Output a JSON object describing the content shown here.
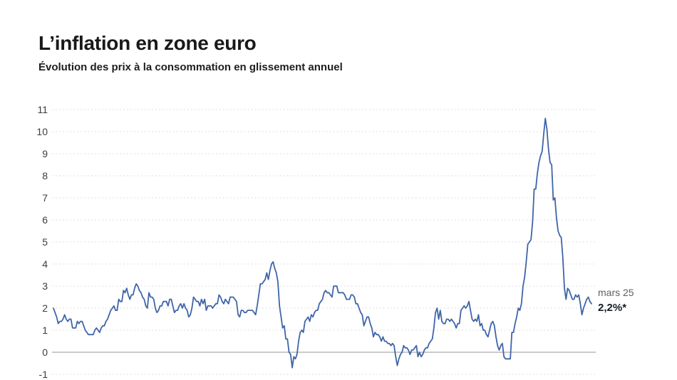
{
  "header": {
    "title": "L’inflation en zone euro",
    "subtitle": "Évolution des prix à la consommation en glissement annuel"
  },
  "annotation": {
    "date_label": "mars 25",
    "value_label": "2,2%*"
  },
  "colors": {
    "background": "#ffffff",
    "line": "#3f65a9",
    "grid": "#d4d4d4",
    "zero_line": "#ababab",
    "title": "#191919",
    "tick": "#3d3d3d",
    "annotation_date": "#606060",
    "annotation_value": "#121c26"
  },
  "chart_data": {
    "type": "line",
    "title": "L’inflation en zone euro",
    "subtitle": "Évolution des prix à la consommation en glissement annuel",
    "unit": "%",
    "frequency": "monthly",
    "x_start": "1997-01",
    "x_end": "2025-03",
    "ylim": [
      -1,
      11
    ],
    "y_ticks": [
      -1,
      0,
      1,
      2,
      3,
      4,
      5,
      6,
      7,
      8,
      9,
      10,
      11
    ],
    "grid": "dotted-horizontal, solid zero line, no x-axis labels visible",
    "legend": "none",
    "last_point": {
      "label": "mars 25",
      "value": 2.2
    },
    "values_by_year": {
      "1997": [
        2.0,
        1.8,
        1.6,
        1.3,
        1.4,
        1.4,
        1.5,
        1.7,
        1.5,
        1.4,
        1.5,
        1.5
      ],
      "1998": [
        1.1,
        1.1,
        1.1,
        1.4,
        1.3,
        1.4,
        1.4,
        1.2,
        1.0,
        0.9,
        0.8,
        0.8
      ],
      "1999": [
        0.8,
        0.8,
        1.0,
        1.1,
        1.0,
        0.9,
        1.1,
        1.2,
        1.2,
        1.4,
        1.5,
        1.7
      ],
      "2000": [
        1.9,
        2.0,
        2.1,
        1.9,
        1.9,
        2.4,
        2.3,
        2.3,
        2.8,
        2.7,
        2.9,
        2.6
      ],
      "2001": [
        2.4,
        2.6,
        2.6,
        2.9,
        3.1,
        3.0,
        2.8,
        2.7,
        2.5,
        2.4,
        2.1,
        2.0
      ],
      "2002": [
        2.7,
        2.5,
        2.5,
        2.4,
        2.0,
        1.8,
        1.9,
        2.1,
        2.1,
        2.3,
        2.3,
        2.3
      ],
      "2003": [
        2.1,
        2.4,
        2.4,
        2.1,
        1.8,
        1.9,
        1.9,
        2.1,
        2.2,
        2.0,
        2.2,
        2.0
      ],
      "2004": [
        1.9,
        1.6,
        1.7,
        2.0,
        2.5,
        2.4,
        2.3,
        2.3,
        2.1,
        2.4,
        2.2,
        2.4
      ],
      "2005": [
        1.9,
        2.1,
        2.1,
        2.1,
        2.0,
        2.1,
        2.2,
        2.2,
        2.6,
        2.5,
        2.3,
        2.2
      ],
      "2006": [
        2.4,
        2.3,
        2.2,
        2.5,
        2.5,
        2.5,
        2.4,
        2.3,
        1.7,
        1.6,
        1.9,
        1.9
      ],
      "2007": [
        1.8,
        1.8,
        1.9,
        1.9,
        1.9,
        1.9,
        1.8,
        1.7,
        2.1,
        2.6,
        3.1,
        3.1
      ],
      "2008": [
        3.2,
        3.3,
        3.6,
        3.3,
        3.7,
        4.0,
        4.1,
        3.8,
        3.6,
        3.2,
        2.1,
        1.6
      ],
      "2009": [
        1.1,
        1.2,
        0.6,
        0.6,
        0.0,
        -0.1,
        -0.7,
        -0.2,
        -0.3,
        -0.1,
        0.5,
        0.9
      ],
      "2010": [
        1.0,
        0.9,
        1.4,
        1.5,
        1.6,
        1.4,
        1.7,
        1.6,
        1.8,
        1.9,
        1.9,
        2.2
      ],
      "2011": [
        2.3,
        2.4,
        2.7,
        2.8,
        2.7,
        2.7,
        2.6,
        2.5,
        3.0,
        3.0,
        3.0,
        2.7
      ],
      "2012": [
        2.7,
        2.7,
        2.7,
        2.6,
        2.4,
        2.4,
        2.4,
        2.6,
        2.6,
        2.5,
        2.2,
        2.2
      ],
      "2013": [
        2.0,
        1.8,
        1.7,
        1.2,
        1.4,
        1.6,
        1.6,
        1.3,
        1.1,
        0.7,
        0.9,
        0.8
      ],
      "2014": [
        0.8,
        0.7,
        0.5,
        0.7,
        0.5,
        0.5,
        0.4,
        0.4,
        0.3,
        0.4,
        0.3,
        -0.2
      ],
      "2015": [
        -0.6,
        -0.3,
        -0.1,
        0.0,
        0.3,
        0.2,
        0.2,
        0.1,
        -0.1,
        0.1,
        0.1,
        0.2
      ],
      "2016": [
        0.3,
        -0.2,
        0.0,
        -0.2,
        -0.1,
        0.1,
        0.2,
        0.2,
        0.4,
        0.5,
        0.6,
        1.1
      ],
      "2017": [
        1.8,
        2.0,
        1.5,
        1.9,
        1.4,
        1.3,
        1.3,
        1.5,
        1.5,
        1.4,
        1.5,
        1.4
      ],
      "2018": [
        1.3,
        1.1,
        1.3,
        1.3,
        1.9,
        2.0,
        2.1,
        2.0,
        2.1,
        2.3,
        1.9,
        1.5
      ],
      "2019": [
        1.4,
        1.5,
        1.4,
        1.7,
        1.2,
        1.3,
        1.0,
        1.0,
        0.8,
        0.7,
        1.0,
        1.3
      ],
      "2020": [
        1.4,
        1.2,
        0.7,
        0.3,
        0.1,
        0.3,
        0.4,
        -0.2,
        -0.3,
        -0.3,
        -0.3,
        -0.3
      ],
      "2021": [
        0.9,
        0.9,
        1.3,
        1.6,
        2.0,
        1.9,
        2.2,
        3.0,
        3.4,
        4.1,
        4.9,
        5.0
      ],
      "2022": [
        5.1,
        5.9,
        7.4,
        7.4,
        8.1,
        8.6,
        8.9,
        9.1,
        9.9,
        10.6,
        10.1,
        9.2
      ],
      "2023": [
        8.6,
        8.5,
        6.9,
        7.0,
        6.1,
        5.5,
        5.3,
        5.2,
        4.3,
        2.9,
        2.4,
        2.9
      ],
      "2024": [
        2.8,
        2.6,
        2.4,
        2.4,
        2.6,
        2.5,
        2.6,
        2.2,
        1.7,
        2.0,
        2.2,
        2.4
      ],
      "2025": [
        2.5,
        2.3,
        2.2
      ]
    }
  }
}
